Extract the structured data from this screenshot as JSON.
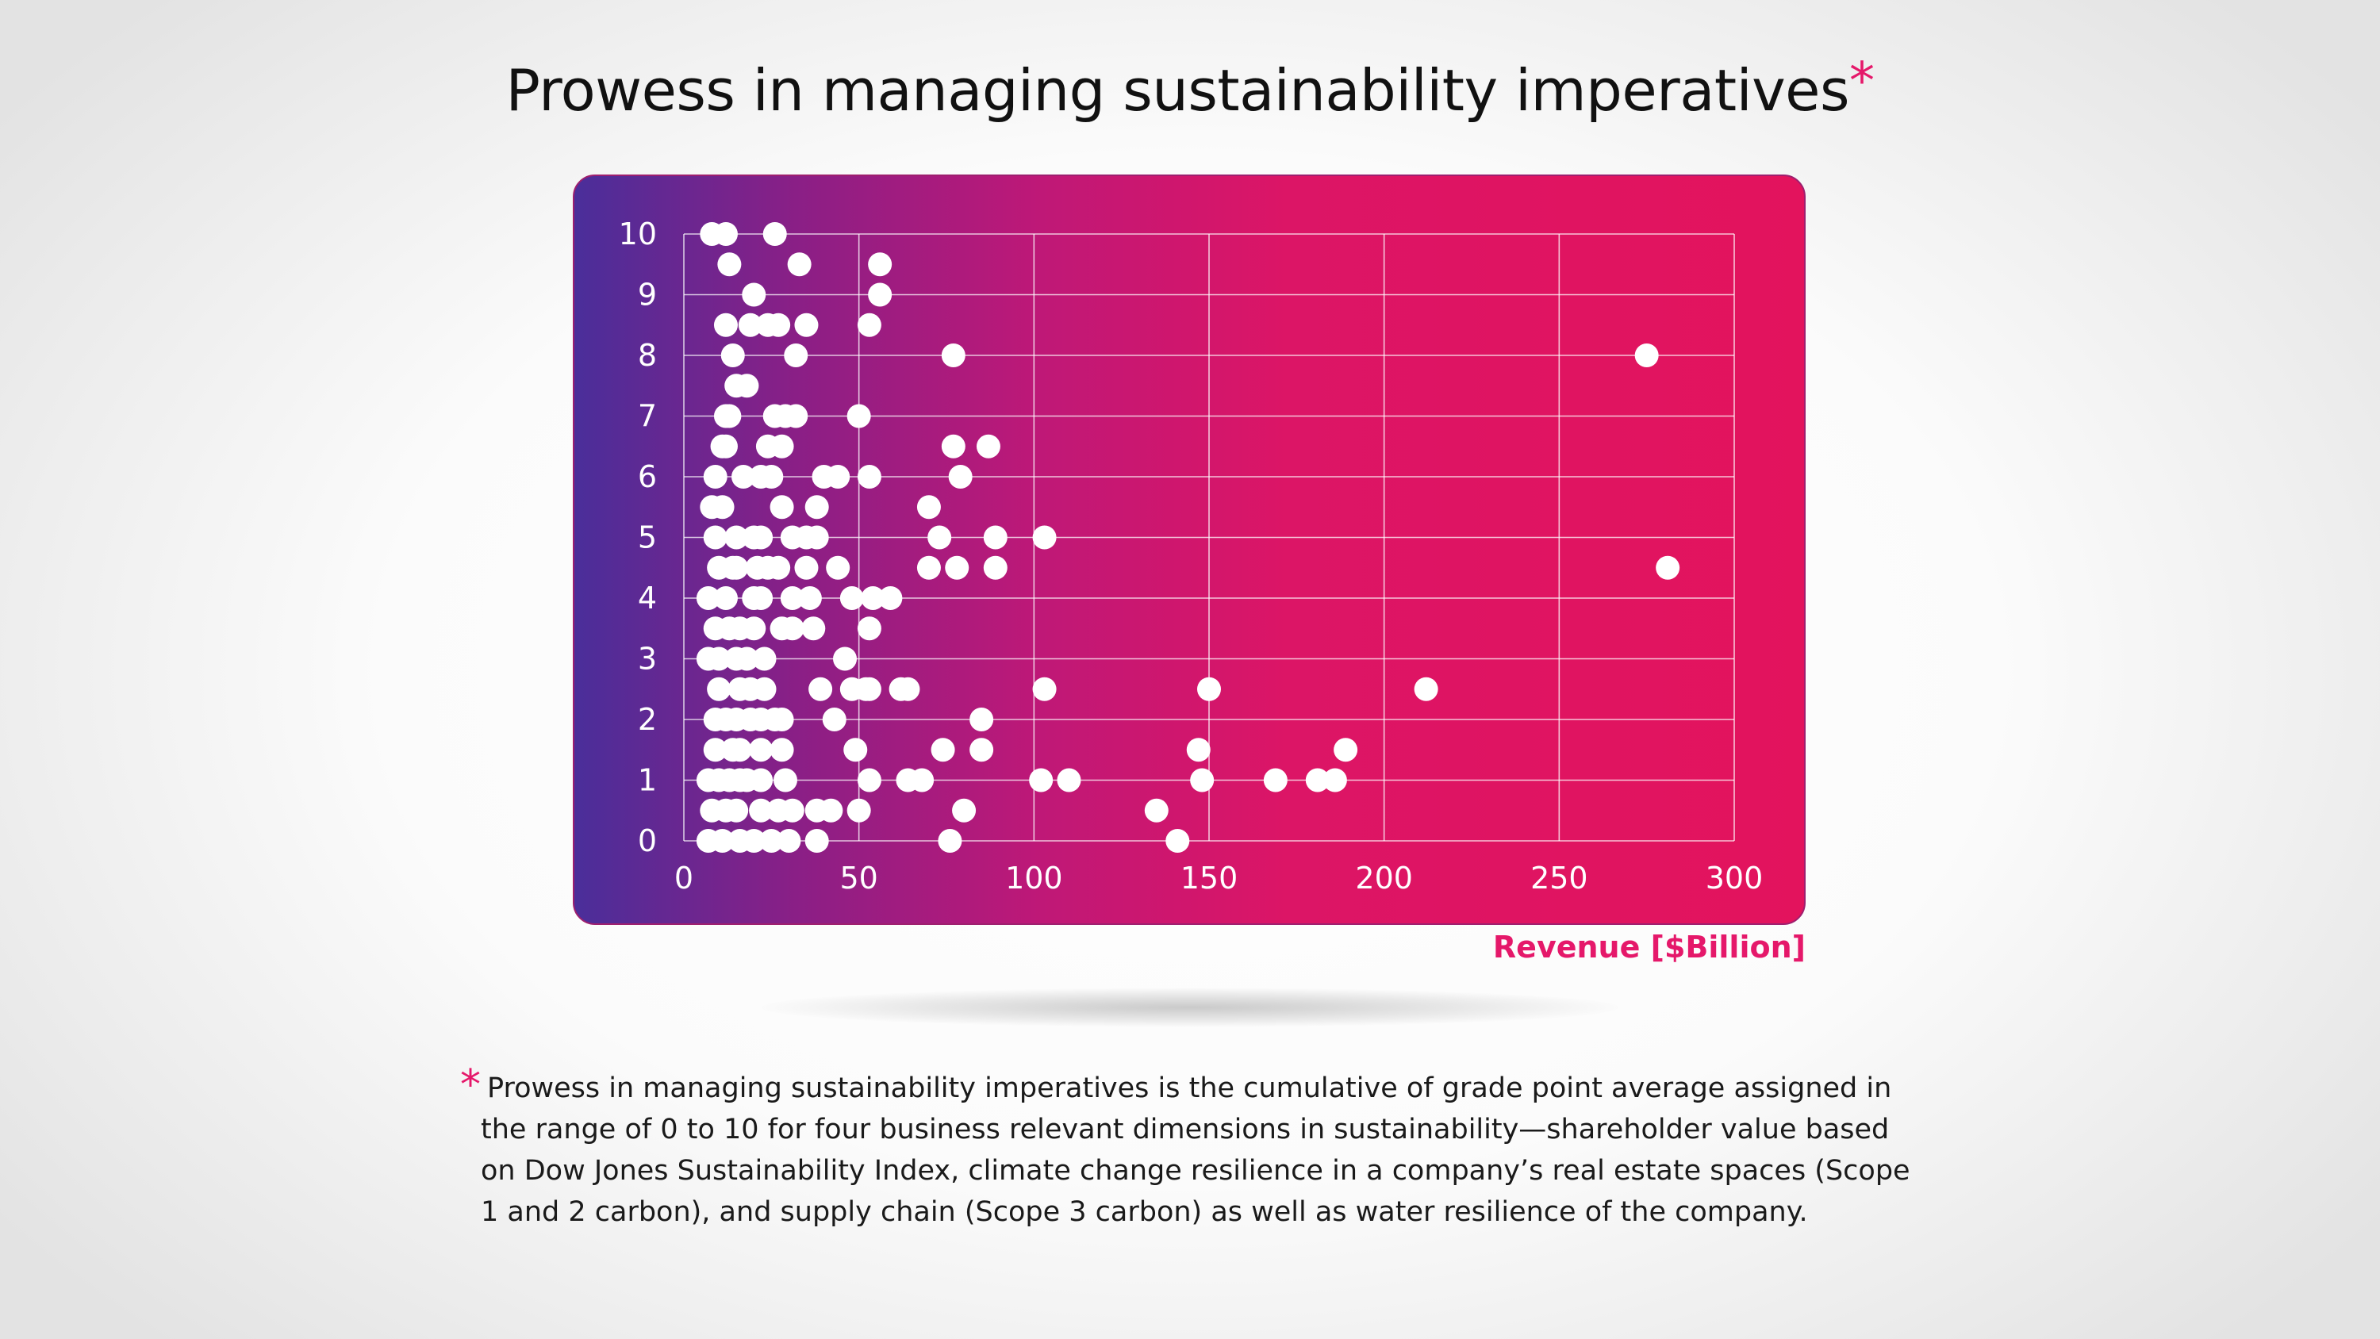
{
  "title": "Prowess in managing sustainability imperatives",
  "title_marker": "*",
  "footnote": {
    "marker": "*",
    "text": "Prowess in managing sustainability imperatives is the cumulative of grade point average assigned in the range of 0 to 10 for four business relevant dimensions in sustainability—shareholder value based on Dow Jones Sustainability Index, climate change resilience in a company’s real estate spaces (Scope 1 and 2 carbon), and supply chain (Scope 3 carbon) as well as water resilience of the company."
  },
  "colors": {
    "accent": "#e5186a",
    "panel_left": "#4a2e9a",
    "panel_right": "#e3135d",
    "point": "#ffffff",
    "grid": "#ffffff"
  },
  "chart_data": {
    "type": "scatter",
    "title": "Prowess in managing sustainability imperatives",
    "xlabel": "Revenue  [$Billion]",
    "ylabel": "",
    "xlim": [
      0,
      300
    ],
    "ylim": [
      0,
      10
    ],
    "xticks": [
      0,
      50,
      100,
      150,
      200,
      250,
      300
    ],
    "yticks": [
      0,
      1,
      2,
      3,
      4,
      5,
      6,
      7,
      8,
      9,
      10
    ],
    "grid": true,
    "legend": "none",
    "points": [
      [
        8,
        10
      ],
      [
        12,
        10
      ],
      [
        26,
        10
      ],
      [
        13,
        9.5
      ],
      [
        33,
        9.5
      ],
      [
        56,
        9.5
      ],
      [
        20,
        9
      ],
      [
        56,
        9
      ],
      [
        12,
        8.5
      ],
      [
        19,
        8.5
      ],
      [
        24,
        8.5
      ],
      [
        27,
        8.5
      ],
      [
        35,
        8.5
      ],
      [
        53,
        8.5
      ],
      [
        14,
        8
      ],
      [
        32,
        8
      ],
      [
        77,
        8
      ],
      [
        275,
        8
      ],
      [
        15,
        7.5
      ],
      [
        18,
        7.5
      ],
      [
        12,
        7
      ],
      [
        13,
        7
      ],
      [
        26,
        7
      ],
      [
        29,
        7
      ],
      [
        32,
        7
      ],
      [
        50,
        7
      ],
      [
        11,
        6.5
      ],
      [
        12,
        6.5
      ],
      [
        24,
        6.5
      ],
      [
        28,
        6.5
      ],
      [
        77,
        6.5
      ],
      [
        87,
        6.5
      ],
      [
        9,
        6
      ],
      [
        17,
        6
      ],
      [
        22,
        6
      ],
      [
        25,
        6
      ],
      [
        40,
        6
      ],
      [
        44,
        6
      ],
      [
        53,
        6
      ],
      [
        79,
        6
      ],
      [
        8,
        5.5
      ],
      [
        11,
        5.5
      ],
      [
        28,
        5.5
      ],
      [
        38,
        5.5
      ],
      [
        70,
        5.5
      ],
      [
        9,
        5
      ],
      [
        15,
        5
      ],
      [
        20,
        5
      ],
      [
        22,
        5
      ],
      [
        31,
        5
      ],
      [
        35,
        5
      ],
      [
        38,
        5
      ],
      [
        73,
        5
      ],
      [
        89,
        5
      ],
      [
        103,
        5
      ],
      [
        10,
        4.5
      ],
      [
        14,
        4.5
      ],
      [
        15,
        4.5
      ],
      [
        21,
        4.5
      ],
      [
        24,
        4.5
      ],
      [
        27,
        4.5
      ],
      [
        35,
        4.5
      ],
      [
        44,
        4.5
      ],
      [
        70,
        4.5
      ],
      [
        78,
        4.5
      ],
      [
        89,
        4.5
      ],
      [
        281,
        4.5
      ],
      [
        7,
        4
      ],
      [
        12,
        4
      ],
      [
        20,
        4
      ],
      [
        22,
        4
      ],
      [
        31,
        4
      ],
      [
        36,
        4
      ],
      [
        48,
        4
      ],
      [
        54,
        4
      ],
      [
        59,
        4
      ],
      [
        9,
        3.5
      ],
      [
        13,
        3.5
      ],
      [
        16,
        3.5
      ],
      [
        20,
        3.5
      ],
      [
        28,
        3.5
      ],
      [
        31,
        3.5
      ],
      [
        37,
        3.5
      ],
      [
        53,
        3.5
      ],
      [
        7,
        3
      ],
      [
        10,
        3
      ],
      [
        15,
        3
      ],
      [
        18,
        3
      ],
      [
        23,
        3
      ],
      [
        46,
        3
      ],
      [
        10,
        2.5
      ],
      [
        16,
        2.5
      ],
      [
        19,
        2.5
      ],
      [
        23,
        2.5
      ],
      [
        39,
        2.5
      ],
      [
        48,
        2.5
      ],
      [
        52,
        2.5
      ],
      [
        53,
        2.5
      ],
      [
        62,
        2.5
      ],
      [
        64,
        2.5
      ],
      [
        103,
        2.5
      ],
      [
        150,
        2.5
      ],
      [
        212,
        2.5
      ],
      [
        9,
        2
      ],
      [
        12,
        2
      ],
      [
        15,
        2
      ],
      [
        19,
        2
      ],
      [
        22,
        2
      ],
      [
        26,
        2
      ],
      [
        28,
        2
      ],
      [
        43,
        2
      ],
      [
        85,
        2
      ],
      [
        9,
        1.5
      ],
      [
        14,
        1.5
      ],
      [
        16,
        1.5
      ],
      [
        22,
        1.5
      ],
      [
        28,
        1.5
      ],
      [
        49,
        1.5
      ],
      [
        74,
        1.5
      ],
      [
        85,
        1.5
      ],
      [
        147,
        1.5
      ],
      [
        189,
        1.5
      ],
      [
        7,
        1
      ],
      [
        10,
        1
      ],
      [
        13,
        1
      ],
      [
        16,
        1
      ],
      [
        18,
        1
      ],
      [
        22,
        1
      ],
      [
        29,
        1
      ],
      [
        53,
        1
      ],
      [
        64,
        1
      ],
      [
        68,
        1
      ],
      [
        102,
        1
      ],
      [
        110,
        1
      ],
      [
        148,
        1
      ],
      [
        169,
        1
      ],
      [
        181,
        1
      ],
      [
        186,
        1
      ],
      [
        8,
        0.5
      ],
      [
        12,
        0.5
      ],
      [
        15,
        0.5
      ],
      [
        22,
        0.5
      ],
      [
        27,
        0.5
      ],
      [
        31,
        0.5
      ],
      [
        38,
        0.5
      ],
      [
        42,
        0.5
      ],
      [
        50,
        0.5
      ],
      [
        80,
        0.5
      ],
      [
        135,
        0.5
      ],
      [
        7,
        0
      ],
      [
        11,
        0
      ],
      [
        16,
        0
      ],
      [
        20,
        0
      ],
      [
        25,
        0
      ],
      [
        30,
        0
      ],
      [
        38,
        0
      ],
      [
        76,
        0
      ],
      [
        141,
        0
      ]
    ]
  }
}
